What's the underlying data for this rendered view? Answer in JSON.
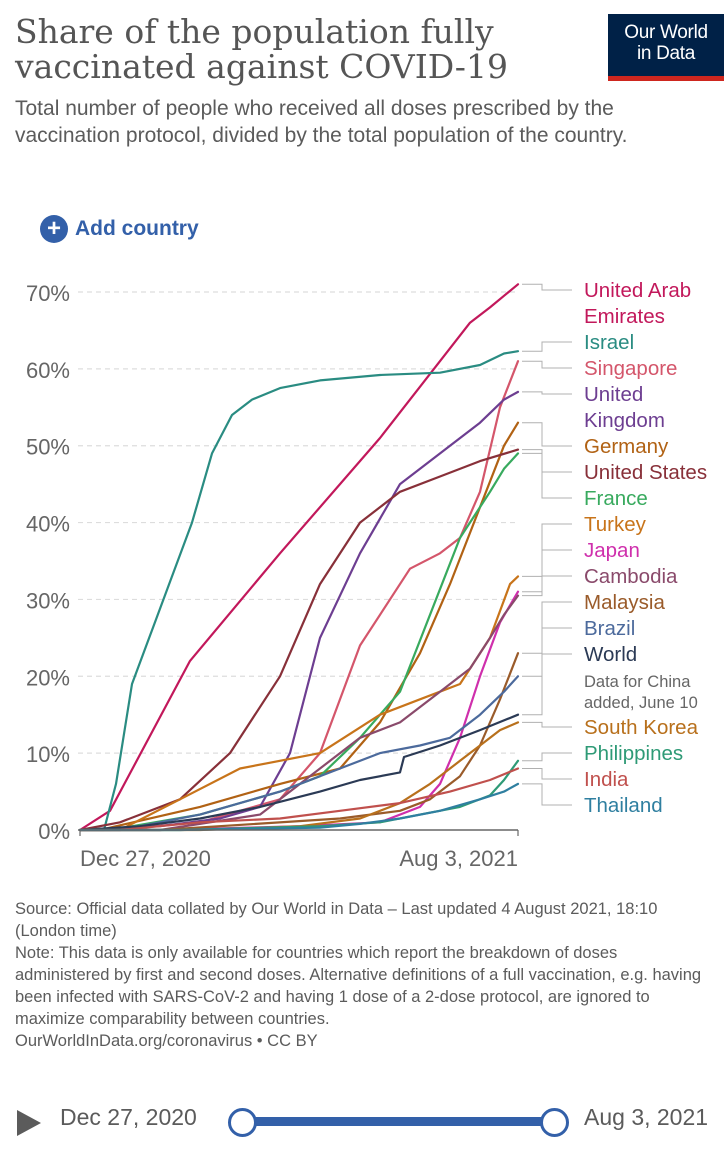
{
  "header": {
    "title": "Share of the population fully vaccinated against COVID-19",
    "subtitle": "Total number of people who received all doses prescribed by the vaccination protocol, divided by the total population of the country.",
    "logo_line1": "Our World",
    "logo_line2": "in Data",
    "add_country": "Add country"
  },
  "colors": {
    "grid": "#dddddd",
    "axis": "#666666",
    "accent": "#3360a9",
    "logo_bg": "#002147",
    "logo_bar": "#ce261e"
  },
  "chart_data": {
    "type": "line",
    "title": "Share of the population fully vaccinated against COVID-19",
    "x_unit": "days since Dec 27, 2020",
    "xlim": [
      0,
      219
    ],
    "ylim": [
      0,
      70
    ],
    "y_ticks": [
      0,
      10,
      20,
      30,
      40,
      50,
      60,
      70
    ],
    "y_tick_labels": [
      "0%",
      "10%",
      "20%",
      "30%",
      "40%",
      "50%",
      "60%",
      "70%"
    ],
    "x_tick_labels": [
      "Dec 27, 2020",
      "Aug 3, 2021"
    ],
    "grid": true,
    "series": [
      {
        "name": "United Arab Emirates",
        "label_lines": [
          "United Arab",
          "Emirates"
        ],
        "color": "#c2185b",
        "x": [
          15,
          55,
          100,
          150,
          195,
          205,
          212,
          219
        ],
        "y": [
          2.5,
          22,
          36,
          51,
          66,
          68,
          69.5,
          71
        ]
      },
      {
        "name": "Israel",
        "label_lines": [
          "Israel"
        ],
        "color": "#2a8c82",
        "x": [
          12,
          18,
          26,
          36,
          46,
          56,
          66,
          76,
          86,
          100,
          120,
          150,
          180,
          200,
          212,
          219
        ],
        "y": [
          0,
          6,
          19,
          26,
          33,
          40,
          49,
          54,
          56,
          57.5,
          58.5,
          59.2,
          59.5,
          60.5,
          62,
          62.3
        ]
      },
      {
        "name": "Singapore",
        "label_lines": [
          "Singapore"
        ],
        "color": "#d4566b",
        "x": [
          15,
          60,
          100,
          120,
          140,
          165,
          180,
          190,
          200,
          210,
          219
        ],
        "y": [
          0,
          1,
          4,
          10,
          24,
          34,
          36,
          38,
          44,
          55,
          61
        ]
      },
      {
        "name": "United Kingdom",
        "label_lines": [
          "United",
          "Kingdom"
        ],
        "color": "#6d3e91",
        "x": [
          0,
          40,
          70,
          90,
          105,
          120,
          140,
          160,
          185,
          200,
          212,
          219
        ],
        "y": [
          0,
          0.5,
          1.5,
          3,
          10,
          25,
          36,
          45,
          50,
          53,
          56,
          57
        ]
      },
      {
        "name": "Germany",
        "label_lines": [
          "Germany"
        ],
        "color": "#b16214",
        "x": [
          10,
          60,
          100,
          130,
          150,
          170,
          185,
          200,
          212,
          219
        ],
        "y": [
          0,
          3,
          6,
          8,
          14,
          23,
          32,
          42,
          50,
          53
        ]
      },
      {
        "name": "United States",
        "label_lines": [
          "United States"
        ],
        "color": "#883039",
        "x": [
          0,
          20,
          50,
          75,
          100,
          120,
          140,
          160,
          180,
          200,
          219
        ],
        "y": [
          0,
          1,
          4,
          10,
          20,
          32,
          40,
          44,
          46,
          48,
          49.5
        ]
      },
      {
        "name": "France",
        "label_lines": [
          "France"
        ],
        "color": "#38aa5e",
        "x": [
          15,
          60,
          100,
          120,
          140,
          160,
          175,
          190,
          205,
          212,
          219
        ],
        "y": [
          0,
          2,
          5,
          7,
          12,
          18,
          28,
          38,
          44,
          47,
          49
        ]
      },
      {
        "name": "Turkey",
        "label_lines": [
          "Turkey"
        ],
        "color": "#c8741a",
        "x": [
          20,
          50,
          80,
          120,
          150,
          170,
          190,
          205,
          215,
          219
        ],
        "y": [
          0,
          4,
          8,
          10,
          15,
          17,
          19,
          25,
          32,
          33
        ]
      },
      {
        "name": "Japan",
        "label_lines": [
          "Japan"
        ],
        "color": "#cf2fac",
        "x": [
          40,
          110,
          150,
          170,
          180,
          190,
          200,
          210,
          219
        ],
        "y": [
          0,
          0.5,
          1,
          3,
          6,
          12,
          20,
          27,
          31
        ]
      },
      {
        "name": "Cambodia",
        "label_lines": [
          "Cambodia"
        ],
        "color": "#8a4a6b",
        "x": [
          40,
          90,
          120,
          140,
          160,
          180,
          195,
          205,
          212,
          219
        ],
        "y": [
          0,
          2,
          8,
          12,
          14,
          18,
          21,
          25,
          28,
          30.5
        ]
      },
      {
        "name": "Malaysia",
        "label_lines": [
          "Malaysia"
        ],
        "color": "#9a5b2a",
        "x": [
          40,
          130,
          160,
          175,
          190,
          200,
          210,
          219
        ],
        "y": [
          0,
          1.5,
          2.5,
          4,
          7,
          11,
          17,
          23
        ]
      },
      {
        "name": "Brazil",
        "label_lines": [
          "Brazil"
        ],
        "color": "#4c6a9c",
        "x": [
          20,
          60,
          100,
          130,
          150,
          170,
          185,
          200,
          212,
          219
        ],
        "y": [
          0,
          2,
          5,
          8,
          10,
          11,
          12,
          15,
          18,
          20
        ]
      },
      {
        "name": "World",
        "label_lines": [
          "World"
        ],
        "color": "#2b3a55",
        "x": [
          0,
          30,
          60,
          90,
          120,
          140,
          160,
          162,
          180,
          200,
          219
        ],
        "y": [
          0,
          0.5,
          1.5,
          3,
          5,
          6.5,
          7.5,
          9.5,
          11,
          13,
          15
        ]
      },
      {
        "name": "South Korea",
        "label_lines": [
          "South Korea"
        ],
        "color": "#b8701c",
        "x": [
          60,
          110,
          140,
          160,
          175,
          190,
          200,
          210,
          219
        ],
        "y": [
          0,
          0.5,
          1.5,
          3.5,
          6,
          9,
          11,
          13,
          14
        ]
      },
      {
        "name": "Philippines",
        "label_lines": [
          "Philippines"
        ],
        "color": "#2e9a76",
        "x": [
          50,
          120,
          150,
          170,
          190,
          205,
          212,
          219
        ],
        "y": [
          0,
          0.5,
          1,
          2,
          3,
          4.5,
          6.5,
          9
        ]
      },
      {
        "name": "India",
        "label_lines": [
          "India"
        ],
        "color": "#c0504d",
        "x": [
          20,
          60,
          100,
          130,
          160,
          185,
          205,
          219
        ],
        "y": [
          0,
          1,
          1.5,
          2.5,
          3.5,
          5,
          6.5,
          8
        ]
      },
      {
        "name": "Thailand",
        "label_lines": [
          "Thailand"
        ],
        "color": "#2f7fa0",
        "x": [
          50,
          120,
          140,
          160,
          180,
          200,
          212,
          219
        ],
        "y": [
          0,
          0.3,
          0.8,
          1.5,
          2.5,
          4,
          5,
          6
        ]
      }
    ],
    "annotations": [
      {
        "attached_to": "World",
        "lines": [
          "Data for China",
          "added, June 10"
        ]
      }
    ]
  },
  "footer": {
    "source": "Source: Official data collated by Our World in Data – Last updated 4 August 2021, 18:10 (London time)",
    "note": "Note: This data is only available for countries which report the breakdown of doses administered by first and second doses. Alternative definitions of a full vaccination, e.g. having been infected with SARS-CoV-2 and having 1 dose of a 2-dose protocol, are ignored to maximize comparability between countries.",
    "credit": "OurWorldInData.org/coronavirus • CC BY"
  },
  "timeline": {
    "start_label": "Dec 27, 2020",
    "end_label": "Aug 3, 2021",
    "selected_start": 0,
    "selected_end": 1
  }
}
